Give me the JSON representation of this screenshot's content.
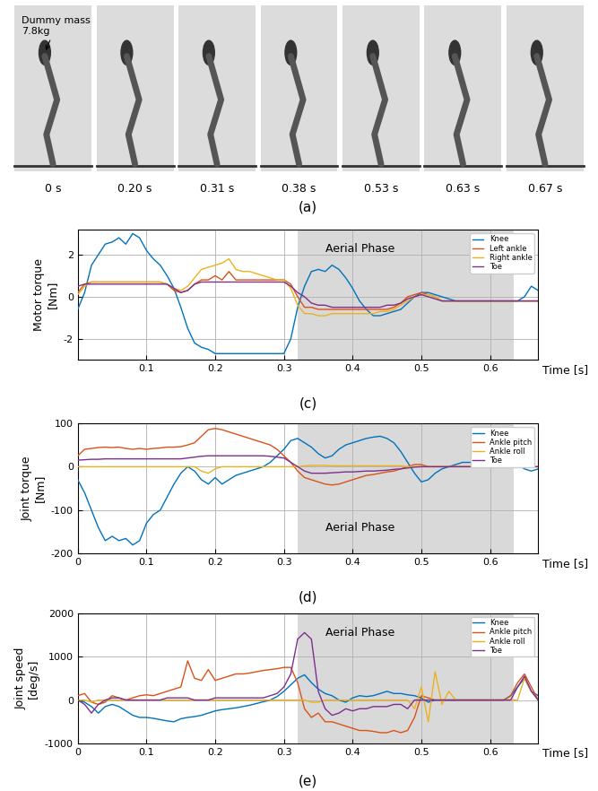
{
  "photo": {
    "panel_label": "(a)",
    "annotation": "Dummy mass\n7.8kg",
    "frame_labels": [
      "0 s",
      "0.20 s",
      "0.31 s",
      "0.38 s",
      "0.53 s",
      "0.63 s",
      "0.67 s"
    ]
  },
  "chart_data": [
    {
      "type": "line",
      "panel_label": "(c)",
      "xlabel": "Time [s]",
      "ylabel": "Motor torque\n[Nm]",
      "x": [
        0,
        0.01,
        0.02,
        0.03,
        0.04,
        0.05,
        0.06,
        0.07,
        0.08,
        0.09,
        0.1,
        0.11,
        0.12,
        0.13,
        0.14,
        0.15,
        0.16,
        0.17,
        0.18,
        0.19,
        0.2,
        0.21,
        0.22,
        0.23,
        0.24,
        0.25,
        0.26,
        0.27,
        0.28,
        0.29,
        0.3,
        0.31,
        0.32,
        0.33,
        0.34,
        0.35,
        0.36,
        0.37,
        0.38,
        0.39,
        0.4,
        0.41,
        0.42,
        0.43,
        0.44,
        0.45,
        0.46,
        0.47,
        0.48,
        0.49,
        0.5,
        0.51,
        0.52,
        0.53,
        0.54,
        0.55,
        0.56,
        0.57,
        0.58,
        0.59,
        0.6,
        0.61,
        0.62,
        0.63,
        0.64,
        0.65,
        0.66,
        0.67
      ],
      "xlim": [
        0,
        0.67
      ],
      "xticks": [
        0.1,
        0.2,
        0.3,
        0.4,
        0.5,
        0.6
      ],
      "ylim": [
        -3,
        3.2
      ],
      "yticks": [
        -2,
        0,
        2
      ],
      "grid": true,
      "legend": "upper right",
      "shaded_region": {
        "label": "Aerial Phase",
        "x": [
          0.32,
          0.635
        ]
      },
      "series": [
        {
          "name": "Knee",
          "color": "#0072BD",
          "values": [
            -0.6,
            0.2,
            1.5,
            2.0,
            2.5,
            2.6,
            2.8,
            2.5,
            3.0,
            2.8,
            2.2,
            1.8,
            1.5,
            1.0,
            0.4,
            -0.5,
            -1.5,
            -2.2,
            -2.4,
            -2.5,
            -2.7,
            -2.7,
            -2.7,
            -2.7,
            -2.7,
            -2.7,
            -2.7,
            -2.7,
            -2.7,
            -2.7,
            -2.7,
            -2.0,
            -0.5,
            0.5,
            1.2,
            1.3,
            1.2,
            1.5,
            1.3,
            0.9,
            0.4,
            -0.2,
            -0.6,
            -0.9,
            -0.9,
            -0.8,
            -0.7,
            -0.6,
            -0.3,
            0.0,
            0.2,
            0.2,
            0.1,
            0.0,
            -0.1,
            -0.2,
            -0.2,
            -0.2,
            -0.2,
            -0.2,
            -0.2,
            -0.2,
            -0.2,
            -0.2,
            -0.2,
            0.0,
            0.5,
            0.3
          ]
        },
        {
          "name": "Left ankle",
          "color": "#D95319",
          "values": [
            0.2,
            0.6,
            0.7,
            0.7,
            0.7,
            0.7,
            0.7,
            0.7,
            0.7,
            0.7,
            0.7,
            0.7,
            0.7,
            0.6,
            0.3,
            0.2,
            0.3,
            0.6,
            0.8,
            0.8,
            1.0,
            0.8,
            1.2,
            0.8,
            0.8,
            0.8,
            0.8,
            0.8,
            0.8,
            0.8,
            0.8,
            0.6,
            0.0,
            -0.5,
            -0.5,
            -0.6,
            -0.6,
            -0.6,
            -0.6,
            -0.6,
            -0.6,
            -0.6,
            -0.6,
            -0.6,
            -0.6,
            -0.6,
            -0.5,
            -0.3,
            0.0,
            0.1,
            0.2,
            0.1,
            0.0,
            -0.2,
            -0.2,
            -0.2,
            -0.2,
            -0.2,
            -0.2,
            -0.2,
            -0.2,
            -0.2,
            -0.2,
            -0.2,
            -0.2,
            -0.2,
            -0.2,
            -0.2
          ]
        },
        {
          "name": "Right ankle",
          "color": "#EDB120",
          "values": [
            0.1,
            0.5,
            0.7,
            0.7,
            0.7,
            0.7,
            0.7,
            0.7,
            0.7,
            0.7,
            0.7,
            0.7,
            0.7,
            0.6,
            0.4,
            0.3,
            0.5,
            0.9,
            1.3,
            1.4,
            1.5,
            1.6,
            1.8,
            1.3,
            1.2,
            1.2,
            1.1,
            1.0,
            0.9,
            0.8,
            0.8,
            0.4,
            -0.4,
            -0.8,
            -0.8,
            -0.9,
            -0.9,
            -0.8,
            -0.8,
            -0.8,
            -0.8,
            -0.8,
            -0.8,
            -0.8,
            -0.7,
            -0.7,
            -0.6,
            -0.4,
            -0.2,
            0.0,
            0.1,
            0.1,
            0.0,
            -0.2,
            -0.2,
            -0.2,
            -0.2,
            -0.2,
            -0.2,
            -0.2,
            -0.2,
            -0.2,
            -0.2,
            -0.2,
            -0.2,
            -0.2,
            -0.2,
            -0.2
          ]
        },
        {
          "name": "Toe",
          "color": "#7E2F8E",
          "values": [
            0.5,
            0.6,
            0.6,
            0.6,
            0.6,
            0.6,
            0.6,
            0.6,
            0.6,
            0.6,
            0.6,
            0.6,
            0.6,
            0.6,
            0.4,
            0.2,
            0.3,
            0.6,
            0.7,
            0.7,
            0.7,
            0.7,
            0.7,
            0.7,
            0.7,
            0.7,
            0.7,
            0.7,
            0.7,
            0.7,
            0.7,
            0.5,
            0.2,
            0.0,
            -0.3,
            -0.4,
            -0.4,
            -0.5,
            -0.5,
            -0.5,
            -0.5,
            -0.5,
            -0.5,
            -0.5,
            -0.5,
            -0.4,
            -0.4,
            -0.3,
            -0.1,
            0.0,
            0.1,
            0.0,
            -0.1,
            -0.2,
            -0.2,
            -0.2,
            -0.2,
            -0.2,
            -0.2,
            -0.2,
            -0.2,
            -0.2,
            -0.2,
            -0.2,
            -0.2,
            -0.2,
            -0.2,
            -0.2
          ]
        }
      ]
    },
    {
      "type": "line",
      "panel_label": "(d)",
      "xlabel": "Time [s]",
      "ylabel": "Joint torque\n[Nm]",
      "x": [
        0,
        0.01,
        0.02,
        0.03,
        0.04,
        0.05,
        0.06,
        0.07,
        0.08,
        0.09,
        0.1,
        0.11,
        0.12,
        0.13,
        0.14,
        0.15,
        0.16,
        0.17,
        0.18,
        0.19,
        0.2,
        0.21,
        0.22,
        0.23,
        0.24,
        0.25,
        0.26,
        0.27,
        0.28,
        0.29,
        0.3,
        0.31,
        0.32,
        0.33,
        0.34,
        0.35,
        0.36,
        0.37,
        0.38,
        0.39,
        0.4,
        0.41,
        0.42,
        0.43,
        0.44,
        0.45,
        0.46,
        0.47,
        0.48,
        0.49,
        0.5,
        0.51,
        0.52,
        0.53,
        0.54,
        0.55,
        0.56,
        0.57,
        0.58,
        0.59,
        0.6,
        0.61,
        0.62,
        0.63,
        0.64,
        0.65,
        0.66,
        0.67
      ],
      "xlim": [
        0,
        0.67
      ],
      "xticks": [
        0,
        0.1,
        0.2,
        0.3,
        0.4,
        0.5,
        0.6
      ],
      "ylim": [
        -200,
        100
      ],
      "yticks": [
        -200,
        -100,
        0,
        100
      ],
      "grid": true,
      "legend": "upper right",
      "shaded_region": {
        "label": "Aerial Phase",
        "x": [
          0.32,
          0.635
        ]
      },
      "series": [
        {
          "name": "Knee",
          "color": "#0072BD",
          "values": [
            -30,
            -60,
            -100,
            -140,
            -170,
            -160,
            -170,
            -165,
            -180,
            -170,
            -130,
            -110,
            -100,
            -70,
            -40,
            -15,
            0,
            -10,
            -30,
            -40,
            -25,
            -40,
            -30,
            -20,
            -15,
            -10,
            -5,
            0,
            10,
            25,
            40,
            60,
            65,
            55,
            45,
            30,
            20,
            25,
            40,
            50,
            55,
            60,
            65,
            68,
            70,
            65,
            55,
            35,
            10,
            -15,
            -35,
            -30,
            -15,
            -5,
            0,
            5,
            10,
            10,
            10,
            10,
            10,
            10,
            10,
            12,
            5,
            -5,
            -10,
            -5
          ]
        },
        {
          "name": "Ankle pitch",
          "color": "#D95319",
          "values": [
            25,
            40,
            42,
            44,
            45,
            44,
            45,
            42,
            40,
            42,
            40,
            42,
            43,
            45,
            45,
            46,
            50,
            55,
            70,
            85,
            88,
            85,
            80,
            75,
            70,
            65,
            60,
            55,
            50,
            40,
            25,
            10,
            -10,
            -25,
            -30,
            -35,
            -40,
            -42,
            -40,
            -35,
            -30,
            -25,
            -20,
            -18,
            -15,
            -12,
            -10,
            -5,
            0,
            5,
            5,
            0,
            0,
            0,
            0,
            0,
            0,
            0,
            0,
            0,
            0,
            0,
            0,
            0,
            0,
            0,
            0,
            0
          ]
        },
        {
          "name": "Ankle roll",
          "color": "#EDB120",
          "values": [
            0,
            0,
            0,
            0,
            0,
            0,
            0,
            0,
            0,
            0,
            0,
            0,
            0,
            0,
            0,
            0,
            0,
            0,
            -10,
            -15,
            -5,
            0,
            0,
            0,
            0,
            0,
            0,
            0,
            0,
            0,
            0,
            0,
            0,
            2,
            3,
            3,
            3,
            2,
            2,
            2,
            2,
            2,
            2,
            2,
            2,
            2,
            2,
            2,
            0,
            0,
            0,
            0,
            0,
            0,
            0,
            0,
            0,
            0,
            0,
            0,
            0,
            0,
            0,
            0,
            0,
            0,
            0,
            0
          ]
        },
        {
          "name": "Toe",
          "color": "#7E2F8E",
          "values": [
            15,
            16,
            17,
            17,
            18,
            18,
            18,
            18,
            18,
            18,
            18,
            18,
            18,
            18,
            18,
            18,
            20,
            22,
            24,
            25,
            25,
            25,
            25,
            25,
            25,
            25,
            25,
            25,
            24,
            22,
            20,
            10,
            0,
            -10,
            -15,
            -15,
            -15,
            -14,
            -13,
            -12,
            -12,
            -11,
            -10,
            -10,
            -9,
            -8,
            -6,
            -5,
            -3,
            -1,
            0,
            0,
            0,
            0,
            0,
            0,
            0,
            0,
            0,
            0,
            0,
            0,
            0,
            0,
            0,
            0,
            0,
            0
          ]
        }
      ]
    },
    {
      "type": "line",
      "panel_label": "(e)",
      "xlabel": "Time [s]",
      "ylabel": "Joint speed\n[deg/s]",
      "x": [
        0,
        0.01,
        0.02,
        0.03,
        0.04,
        0.05,
        0.06,
        0.07,
        0.08,
        0.09,
        0.1,
        0.11,
        0.12,
        0.13,
        0.14,
        0.15,
        0.16,
        0.17,
        0.18,
        0.19,
        0.2,
        0.21,
        0.22,
        0.23,
        0.24,
        0.25,
        0.26,
        0.27,
        0.28,
        0.29,
        0.3,
        0.31,
        0.32,
        0.33,
        0.34,
        0.35,
        0.36,
        0.37,
        0.38,
        0.39,
        0.4,
        0.41,
        0.42,
        0.43,
        0.44,
        0.45,
        0.46,
        0.47,
        0.48,
        0.49,
        0.5,
        0.51,
        0.52,
        0.53,
        0.54,
        0.55,
        0.56,
        0.57,
        0.58,
        0.59,
        0.6,
        0.61,
        0.62,
        0.63,
        0.64,
        0.65,
        0.66,
        0.67
      ],
      "xlim": [
        0,
        0.67
      ],
      "xticks": [
        0,
        0.1,
        0.2,
        0.3,
        0.4,
        0.5,
        0.6
      ],
      "ylim": [
        -1000,
        2000
      ],
      "yticks": [
        -1000,
        0,
        1000,
        2000
      ],
      "grid": true,
      "legend": "upper right",
      "shaded_region": {
        "label": "Aerial Phase",
        "x": [
          0.32,
          0.635
        ]
      },
      "series": [
        {
          "name": "Knee",
          "color": "#0072BD",
          "values": [
            0,
            -50,
            -150,
            -300,
            -150,
            -100,
            -150,
            -250,
            -350,
            -400,
            -400,
            -420,
            -450,
            -480,
            -500,
            -430,
            -400,
            -380,
            -350,
            -300,
            -250,
            -220,
            -200,
            -180,
            -150,
            -120,
            -80,
            -40,
            0,
            80,
            200,
            350,
            500,
            580,
            400,
            250,
            150,
            100,
            0,
            -50,
            50,
            100,
            80,
            100,
            150,
            200,
            150,
            150,
            120,
            100,
            50,
            -50,
            0,
            0,
            0,
            0,
            0,
            0,
            0,
            0,
            0,
            0,
            0,
            100,
            300,
            500,
            200,
            100
          ]
        },
        {
          "name": "Ankle pitch",
          "color": "#D95319",
          "values": [
            100,
            150,
            -50,
            -100,
            -50,
            100,
            50,
            0,
            50,
            100,
            120,
            100,
            150,
            200,
            250,
            300,
            900,
            500,
            450,
            700,
            450,
            500,
            550,
            600,
            600,
            620,
            650,
            680,
            700,
            720,
            750,
            750,
            400,
            -200,
            -400,
            -300,
            -500,
            -500,
            -550,
            -600,
            -650,
            -700,
            -700,
            -720,
            -750,
            -750,
            -700,
            -750,
            -700,
            -400,
            100,
            50,
            0,
            0,
            0,
            0,
            0,
            0,
            0,
            0,
            0,
            0,
            0,
            100,
            400,
            600,
            300,
            0
          ]
        },
        {
          "name": "Ankle roll",
          "color": "#EDB120",
          "values": [
            0,
            0,
            -50,
            0,
            0,
            0,
            0,
            0,
            0,
            0,
            0,
            0,
            0,
            0,
            0,
            0,
            0,
            0,
            0,
            0,
            0,
            0,
            0,
            0,
            0,
            0,
            0,
            0,
            0,
            0,
            0,
            0,
            0,
            0,
            -50,
            -50,
            0,
            0,
            0,
            0,
            0,
            0,
            0,
            0,
            0,
            0,
            0,
            0,
            0,
            -200,
            300,
            -500,
            650,
            -100,
            200,
            0,
            0,
            0,
            0,
            0,
            0,
            0,
            0,
            0,
            0,
            500,
            200,
            0
          ]
        },
        {
          "name": "Toe",
          "color": "#7E2F8E",
          "values": [
            0,
            -100,
            -300,
            -100,
            0,
            50,
            50,
            0,
            0,
            0,
            0,
            0,
            0,
            50,
            50,
            50,
            50,
            0,
            0,
            0,
            50,
            50,
            50,
            50,
            50,
            50,
            50,
            50,
            100,
            150,
            300,
            600,
            1400,
            1550,
            1400,
            200,
            -200,
            -350,
            -300,
            -200,
            -250,
            -200,
            -200,
            -150,
            -150,
            -150,
            -100,
            -100,
            -200,
            0,
            0,
            0,
            0,
            0,
            0,
            0,
            0,
            0,
            0,
            0,
            0,
            0,
            0,
            0,
            300,
            550,
            200,
            0
          ]
        }
      ]
    }
  ]
}
